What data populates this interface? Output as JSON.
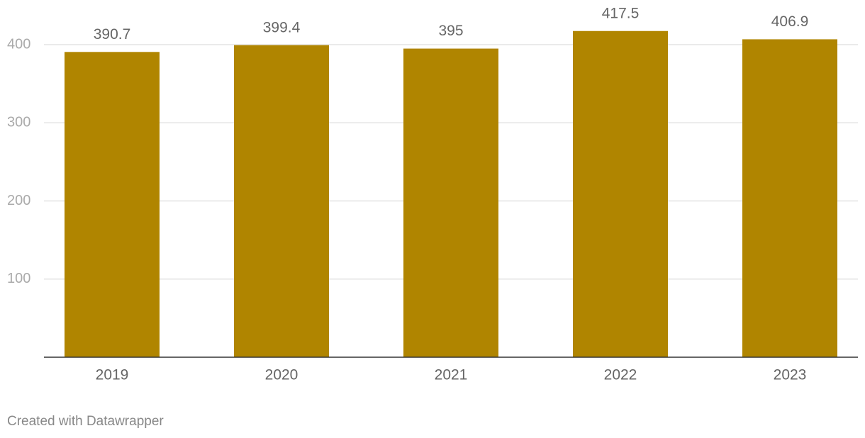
{
  "chart_data": {
    "type": "bar",
    "categories": [
      "2019",
      "2020",
      "2021",
      "2022",
      "2023"
    ],
    "values": [
      390.7,
      399.4,
      395,
      417.5,
      406.9
    ],
    "color": "#b08500",
    "ylim": [
      0,
      420
    ],
    "yticks": [
      100,
      200,
      300,
      400
    ],
    "grid": true
  },
  "footer": "Created with Datawrapper"
}
